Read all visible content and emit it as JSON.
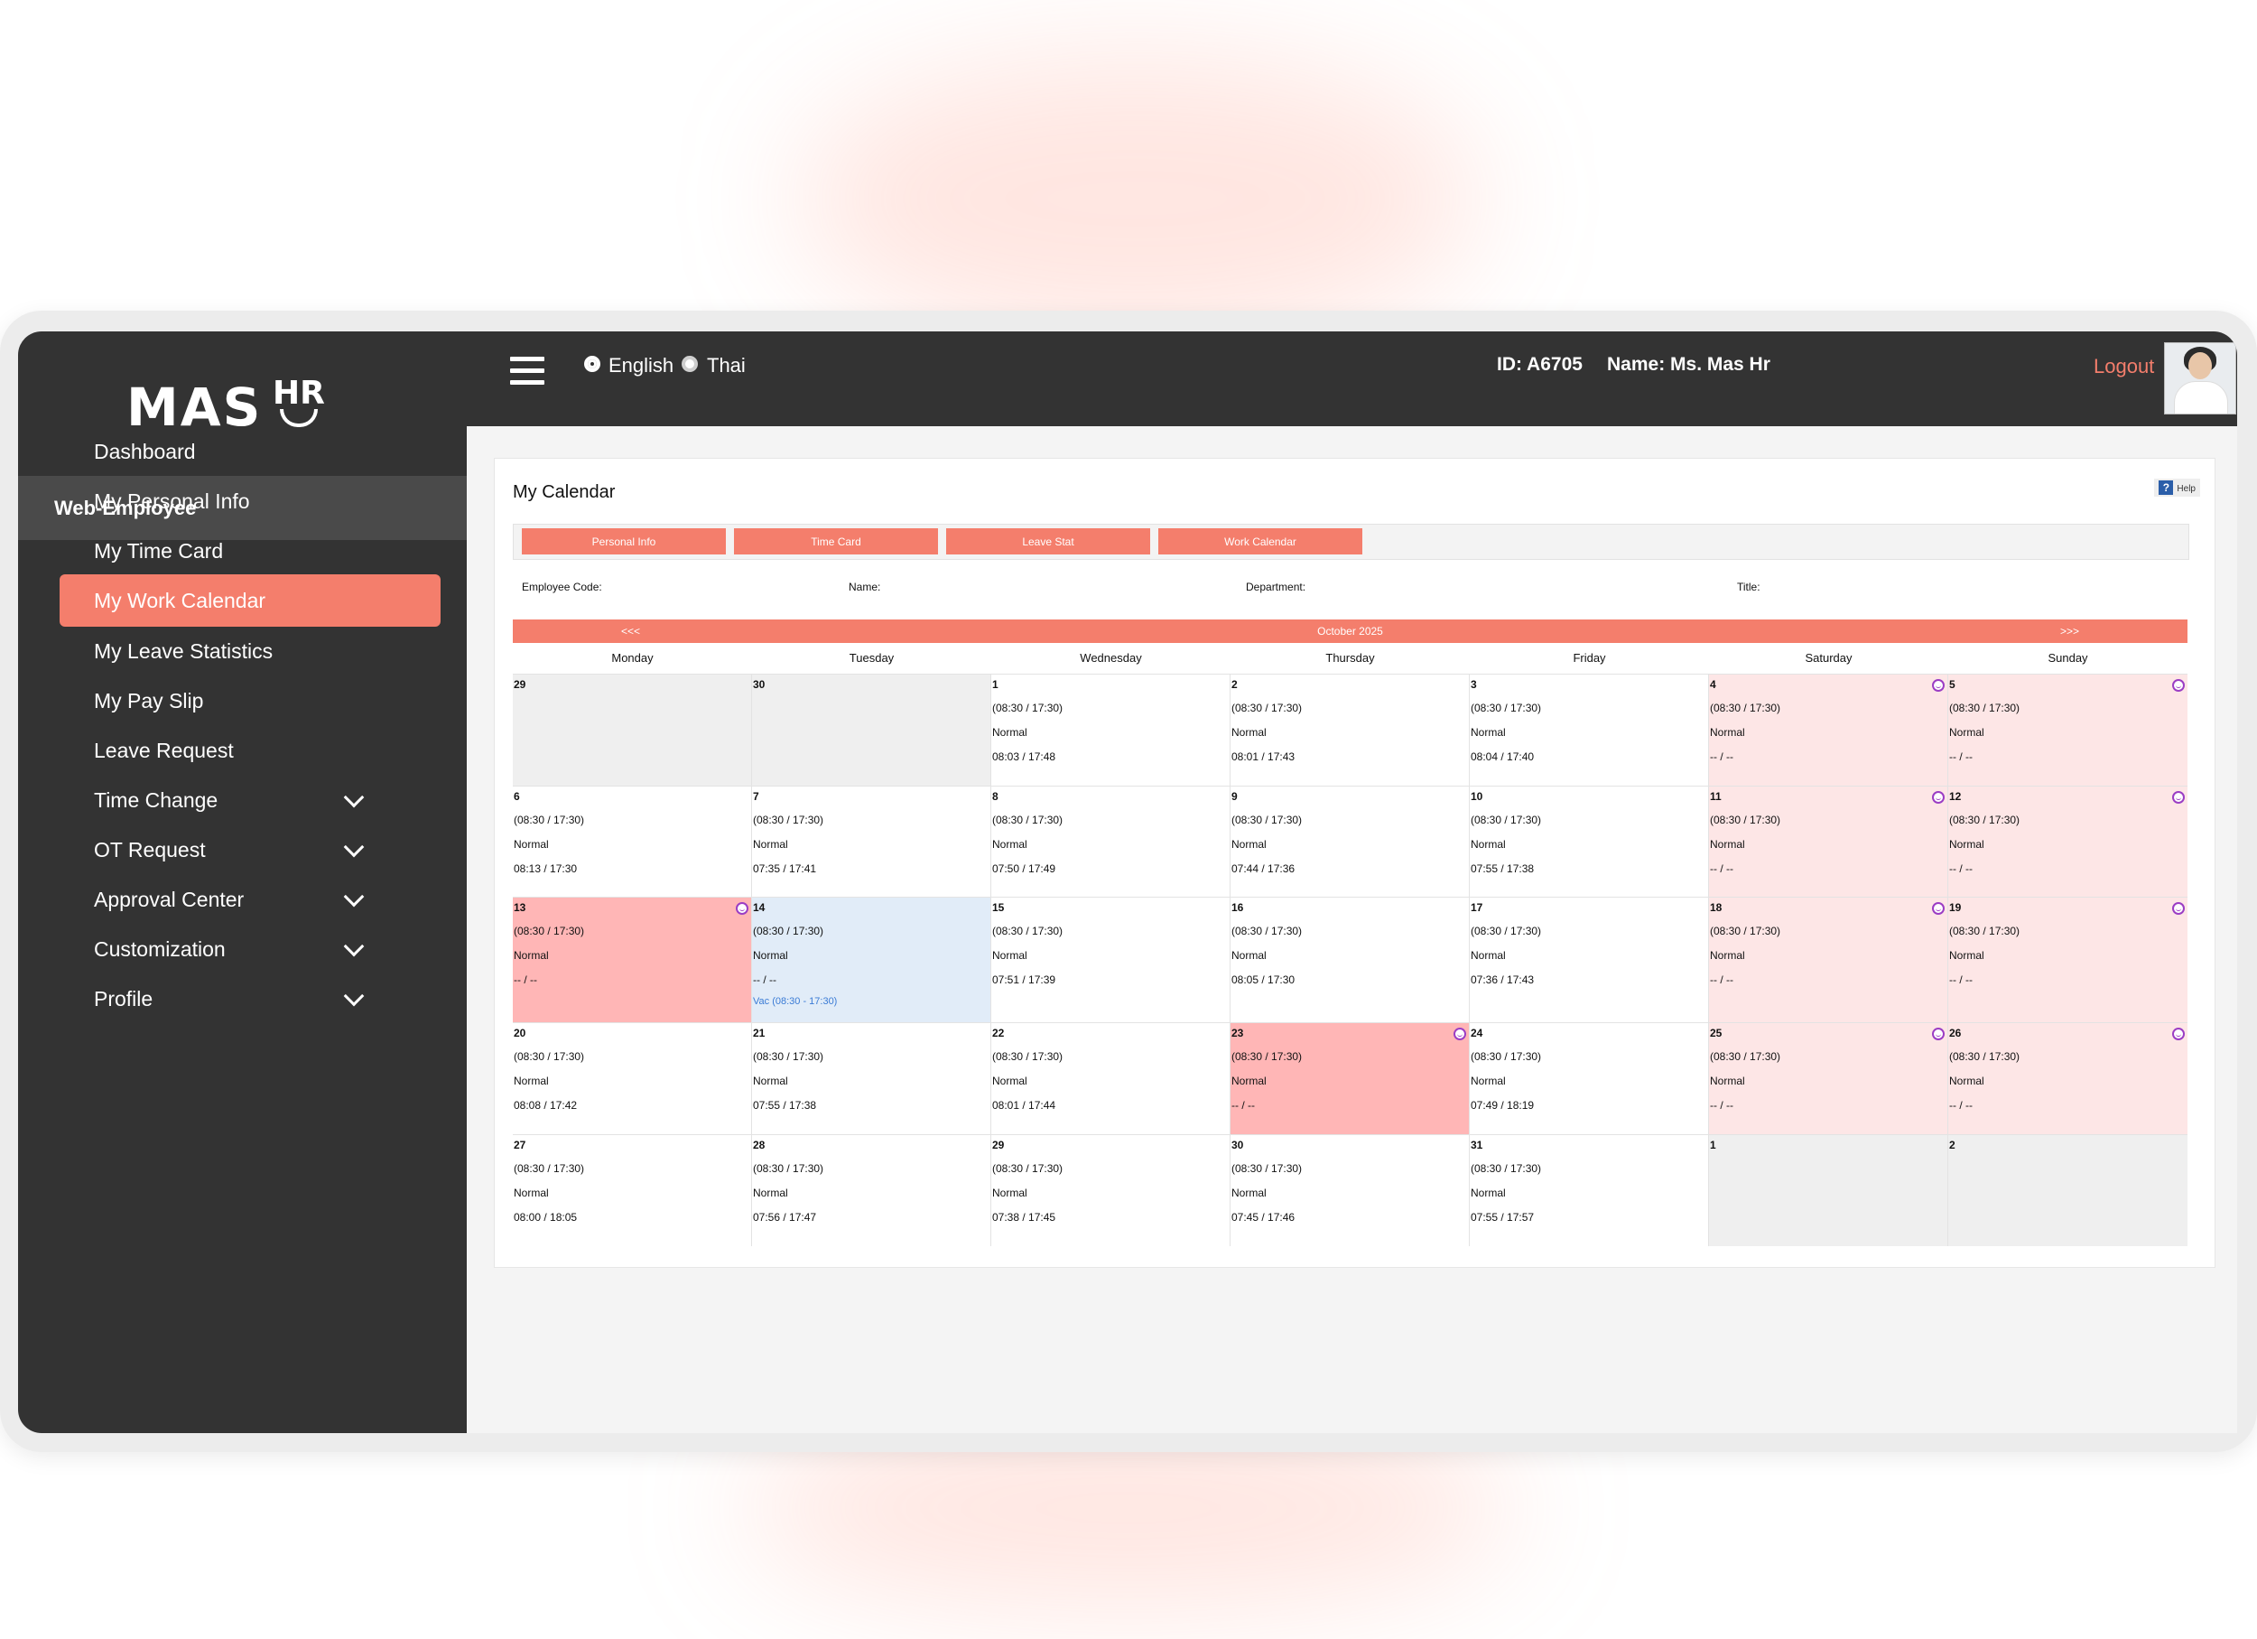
{
  "app": {
    "brand_main": "MAS",
    "brand_sub": "HR"
  },
  "sidebar": {
    "section": "Web-Employee",
    "items": [
      {
        "label": "Dashboard"
      },
      {
        "label": "My Personal Info"
      },
      {
        "label": "My Time Card"
      },
      {
        "label": "My Work Calendar",
        "active": true
      },
      {
        "label": "My Leave Statistics"
      },
      {
        "label": "My Pay Slip"
      },
      {
        "label": "Leave Request"
      },
      {
        "label": "Time Change",
        "expandable": true
      },
      {
        "label": "OT Request",
        "expandable": true
      },
      {
        "label": "Approval Center",
        "expandable": true
      },
      {
        "label": "Customization",
        "expandable": true
      },
      {
        "label": "Profile",
        "expandable": true
      }
    ]
  },
  "topbar": {
    "lang_en": "English",
    "lang_th": "Thai",
    "selected_lang": "English",
    "id_text": "ID: A6705",
    "name_text": "Name: Ms. Mas Hr",
    "logout": "Logout"
  },
  "page": {
    "title": "My Calendar",
    "help": "Help",
    "tabs": [
      "Personal Info",
      "Time Card",
      "Leave Stat",
      "Work Calendar"
    ],
    "fields": {
      "employee_code": "Employee Code:",
      "name": "Name:",
      "department": "Department:",
      "title": "Title:"
    }
  },
  "calendar": {
    "month": "October 2025",
    "prev": "<<<",
    "next": ">>>",
    "days_of_week": [
      "Monday",
      "Tuesday",
      "Wednesday",
      "Thursday",
      "Friday",
      "Saturday",
      "Sunday"
    ],
    "weeks": [
      [
        {
          "day": "29",
          "type": "out"
        },
        {
          "day": "30",
          "type": "out"
        },
        {
          "day": "1",
          "type": "work",
          "shift": "(08:30 / 17:30)",
          "status": "Normal",
          "actual": "08:03 / 17:48"
        },
        {
          "day": "2",
          "type": "work",
          "shift": "(08:30 / 17:30)",
          "status": "Normal",
          "actual": "08:01 / 17:43"
        },
        {
          "day": "3",
          "type": "work",
          "shift": "(08:30 / 17:30)",
          "status": "Normal",
          "actual": "08:04 / 17:40"
        },
        {
          "day": "4",
          "type": "weekend",
          "shift": "(08:30 / 17:30)",
          "status": "Normal",
          "actual": "-- / --",
          "icon": "smiley-icon"
        },
        {
          "day": "5",
          "type": "weekend",
          "shift": "(08:30 / 17:30)",
          "status": "Normal",
          "actual": "-- / --",
          "icon": "smiley-icon"
        }
      ],
      [
        {
          "day": "6",
          "type": "work",
          "shift": "(08:30 / 17:30)",
          "status": "Normal",
          "actual": "08:13 / 17:30"
        },
        {
          "day": "7",
          "type": "work",
          "shift": "(08:30 / 17:30)",
          "status": "Normal",
          "actual": "07:35 / 17:41"
        },
        {
          "day": "8",
          "type": "work",
          "shift": "(08:30 / 17:30)",
          "status": "Normal",
          "actual": "07:50 / 17:49"
        },
        {
          "day": "9",
          "type": "work",
          "shift": "(08:30 / 17:30)",
          "status": "Normal",
          "actual": "07:44 / 17:36"
        },
        {
          "day": "10",
          "type": "work",
          "shift": "(08:30 / 17:30)",
          "status": "Normal",
          "actual": "07:55 / 17:38"
        },
        {
          "day": "11",
          "type": "weekend",
          "shift": "(08:30 / 17:30)",
          "status": "Normal",
          "actual": "-- / --",
          "icon": "smiley-icon"
        },
        {
          "day": "12",
          "type": "weekend",
          "shift": "(08:30 / 17:30)",
          "status": "Normal",
          "actual": "-- / --",
          "icon": "smiley-icon"
        }
      ],
      [
        {
          "day": "13",
          "type": "holiday",
          "shift": "(08:30 / 17:30)",
          "status": "Normal",
          "actual": "-- / --",
          "icon": "smiley-icon"
        },
        {
          "day": "14",
          "type": "today",
          "shift": "(08:30 / 17:30)",
          "status": "Normal",
          "actual": "-- / --",
          "note": "Vac (08:30 - 17:30)"
        },
        {
          "day": "15",
          "type": "work",
          "shift": "(08:30 / 17:30)",
          "status": "Normal",
          "actual": "07:51 / 17:39"
        },
        {
          "day": "16",
          "type": "work",
          "shift": "(08:30 / 17:30)",
          "status": "Normal",
          "actual": "08:05 / 17:30"
        },
        {
          "day": "17",
          "type": "work",
          "shift": "(08:30 / 17:30)",
          "status": "Normal",
          "actual": "07:36 / 17:43"
        },
        {
          "day": "18",
          "type": "weekend",
          "shift": "(08:30 / 17:30)",
          "status": "Normal",
          "actual": "-- / --",
          "icon": "smiley-icon"
        },
        {
          "day": "19",
          "type": "weekend",
          "shift": "(08:30 / 17:30)",
          "status": "Normal",
          "actual": "-- / --",
          "icon": "smiley-icon"
        }
      ],
      [
        {
          "day": "20",
          "type": "work",
          "shift": "(08:30 / 17:30)",
          "status": "Normal",
          "actual": "08:08 / 17:42"
        },
        {
          "day": "21",
          "type": "work",
          "shift": "(08:30 / 17:30)",
          "status": "Normal",
          "actual": "07:55 / 17:38"
        },
        {
          "day": "22",
          "type": "work",
          "shift": "(08:30 / 17:30)",
          "status": "Normal",
          "actual": "08:01 / 17:44"
        },
        {
          "day": "23",
          "type": "holiday",
          "shift": "(08:30 / 17:30)",
          "status": "Normal",
          "actual": "-- / --",
          "icon": "smiley-icon"
        },
        {
          "day": "24",
          "type": "work",
          "shift": "(08:30 / 17:30)",
          "status": "Normal",
          "actual": "07:49 / 18:19"
        },
        {
          "day": "25",
          "type": "weekend",
          "shift": "(08:30 / 17:30)",
          "status": "Normal",
          "actual": "-- / --",
          "icon": "smiley-icon"
        },
        {
          "day": "26",
          "type": "weekend",
          "shift": "(08:30 / 17:30)",
          "status": "Normal",
          "actual": "-- / --",
          "icon": "smiley-icon"
        }
      ],
      [
        {
          "day": "27",
          "type": "work",
          "shift": "(08:30 / 17:30)",
          "status": "Normal",
          "actual": "08:00 / 18:05"
        },
        {
          "day": "28",
          "type": "work",
          "shift": "(08:30 / 17:30)",
          "status": "Normal",
          "actual": "07:56 / 17:47"
        },
        {
          "day": "29",
          "type": "work",
          "shift": "(08:30 / 17:30)",
          "status": "Normal",
          "actual": "07:38 / 17:45"
        },
        {
          "day": "30",
          "type": "work",
          "shift": "(08:30 / 17:30)",
          "status": "Normal",
          "actual": "07:45 / 17:46"
        },
        {
          "day": "31",
          "type": "work",
          "shift": "(08:30 / 17:30)",
          "status": "Normal",
          "actual": "07:55 / 17:57"
        },
        {
          "day": "1",
          "type": "out"
        },
        {
          "day": "2",
          "type": "out"
        }
      ]
    ]
  }
}
